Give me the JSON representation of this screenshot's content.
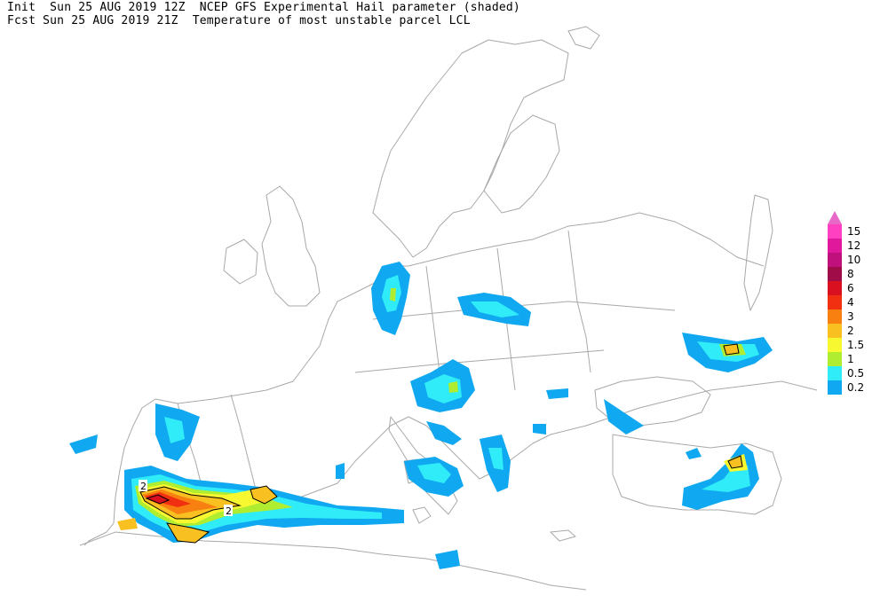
{
  "header": {
    "line1": "Init  Sun 25 AUG 2019 12Z  NCEP GFS Experimental Hail parameter (shaded)",
    "line2": "Fcst Sun 25 AUG 2019 21Z  Temperature of most unstable parcel LCL"
  },
  "legend": {
    "levels": [
      {
        "label": "15",
        "color": "#ff40c0"
      },
      {
        "label": "12",
        "color": "#e0189c"
      },
      {
        "label": "10",
        "color": "#c0107c"
      },
      {
        "label": "8",
        "color": "#a00c48"
      },
      {
        "label": "6",
        "color": "#d81020"
      },
      {
        "label": "4",
        "color": "#f03010"
      },
      {
        "label": "3",
        "color": "#f88010"
      },
      {
        "label": "2",
        "color": "#f8c020"
      },
      {
        "label": "1.5",
        "color": "#f8f830"
      },
      {
        "label": "1",
        "color": "#b0ec30"
      },
      {
        "label": "0.5",
        "color": "#30ecf8"
      },
      {
        "label": "0.2",
        "color": "#10a8f0"
      }
    ],
    "arrow_color": "#e868c8"
  },
  "contour_labels": [
    "2",
    "2"
  ]
}
